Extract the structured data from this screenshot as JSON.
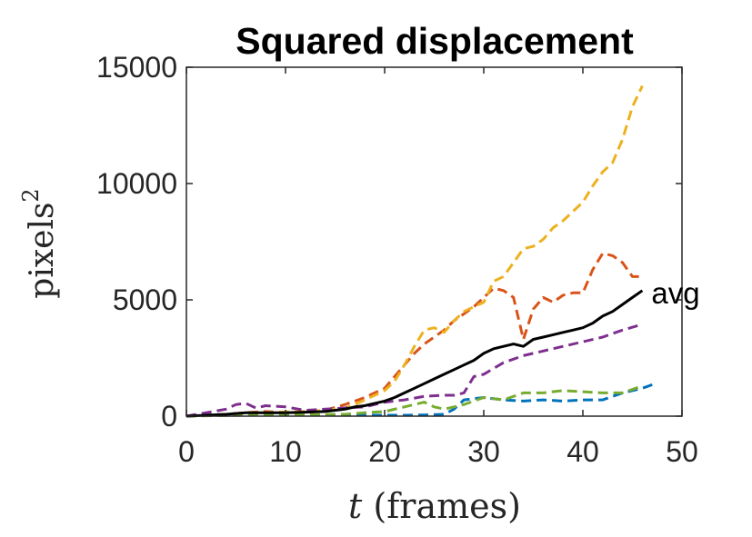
{
  "chart_data": {
    "type": "line",
    "title": "Squared displacement",
    "ylabel_base": "pixels",
    "ylabel_sup": "2",
    "xlabel_var": "t",
    "xlabel_rest": " (frames)",
    "xlim": [
      0,
      50
    ],
    "ylim": [
      0,
      15000
    ],
    "xticks": [
      0,
      10,
      20,
      30,
      40,
      50
    ],
    "yticks": [
      0,
      5000,
      10000,
      15000
    ],
    "xtick_labels": [
      "0",
      "10",
      "20",
      "30",
      "40",
      "50"
    ],
    "ytick_labels": [
      "0",
      "5000",
      "10000",
      "15000"
    ],
    "grid": false,
    "series": [
      {
        "color": "#0072BD",
        "dash": true,
        "x": [
          0,
          2,
          4,
          6,
          8,
          10,
          12,
          14,
          16,
          18,
          20,
          22,
          24,
          26,
          27,
          28,
          30,
          32,
          34,
          36,
          38,
          40,
          42,
          44,
          46,
          47
        ],
        "y": [
          0,
          50,
          80,
          100,
          80,
          60,
          60,
          50,
          40,
          40,
          40,
          40,
          50,
          80,
          300,
          700,
          800,
          700,
          650,
          700,
          650,
          700,
          700,
          1000,
          1200,
          1350
        ]
      },
      {
        "color": "#D95319",
        "dash": true,
        "x": [
          0,
          2,
          4,
          6,
          8,
          10,
          12,
          14,
          16,
          17,
          18,
          19,
          20,
          21,
          22,
          23,
          24,
          25,
          26,
          27,
          28,
          29,
          30,
          31,
          32,
          33,
          34,
          35,
          36,
          37,
          38,
          39,
          40,
          41,
          42,
          43,
          44,
          45,
          46
        ],
        "y": [
          0,
          40,
          80,
          150,
          200,
          150,
          150,
          250,
          500,
          650,
          800,
          1000,
          1200,
          1700,
          2200,
          2700,
          3100,
          3400,
          3700,
          4100,
          4400,
          4700,
          5100,
          5500,
          5400,
          5100,
          3300,
          4600,
          5100,
          4900,
          5200,
          5300,
          5300,
          6300,
          7000,
          6900,
          6600,
          6000,
          6000
        ]
      },
      {
        "color": "#EDB120",
        "dash": true,
        "x": [
          0,
          2,
          4,
          6,
          8,
          10,
          12,
          14,
          16,
          17,
          18,
          19,
          20,
          21,
          22,
          23,
          24,
          25,
          26,
          27,
          28,
          29,
          30,
          31,
          32,
          33,
          34,
          35,
          36,
          37,
          38,
          39,
          40,
          41,
          42,
          43,
          44,
          45,
          46
        ],
        "y": [
          0,
          40,
          80,
          120,
          150,
          180,
          200,
          250,
          350,
          500,
          700,
          900,
          1100,
          1500,
          2200,
          3000,
          3700,
          3800,
          3600,
          4100,
          4500,
          4700,
          4900,
          5800,
          6000,
          6600,
          7200,
          7300,
          7600,
          8100,
          8400,
          8800,
          9200,
          9900,
          10500,
          10900,
          11900,
          13300,
          14200
        ]
      },
      {
        "color": "#7E2F8E",
        "dash": true,
        "x": [
          0,
          2,
          4,
          5,
          6,
          7,
          8,
          10,
          12,
          14,
          16,
          18,
          20,
          22,
          24,
          26,
          27,
          28,
          29,
          30,
          32,
          34,
          36,
          38,
          40,
          42,
          44,
          46
        ],
        "y": [
          0,
          150,
          300,
          500,
          550,
          350,
          450,
          400,
          250,
          300,
          350,
          400,
          600,
          700,
          850,
          900,
          900,
          1000,
          1700,
          1800,
          2300,
          2600,
          2800,
          3000,
          3200,
          3400,
          3700,
          3950
        ]
      },
      {
        "color": "#77AC30",
        "dash": true,
        "x": [
          0,
          4,
          8,
          12,
          16,
          18,
          20,
          22,
          24,
          25,
          26,
          28,
          30,
          32,
          34,
          36,
          38,
          40,
          42,
          44,
          46
        ],
        "y": [
          0,
          30,
          50,
          60,
          80,
          150,
          200,
          400,
          600,
          400,
          300,
          500,
          800,
          700,
          1000,
          1000,
          1100,
          1050,
          1000,
          1000,
          1300
        ]
      },
      {
        "color": "#000000",
        "dash": false,
        "label": "avg",
        "x": [
          0,
          2,
          4,
          6,
          8,
          10,
          12,
          14,
          16,
          17,
          18,
          19,
          20,
          21,
          22,
          23,
          24,
          25,
          26,
          27,
          28,
          29,
          30,
          31,
          32,
          33,
          34,
          35,
          36,
          37,
          38,
          39,
          40,
          41,
          42,
          43,
          44,
          45,
          46
        ],
        "y": [
          0,
          40,
          80,
          150,
          150,
          150,
          170,
          200,
          300,
          400,
          450,
          550,
          650,
          800,
          1000,
          1200,
          1400,
          1600,
          1800,
          2000,
          2200,
          2400,
          2700,
          2900,
          3000,
          3100,
          3000,
          3300,
          3400,
          3500,
          3600,
          3700,
          3800,
          4000,
          4300,
          4500,
          4800,
          5100,
          5400
        ]
      }
    ]
  }
}
